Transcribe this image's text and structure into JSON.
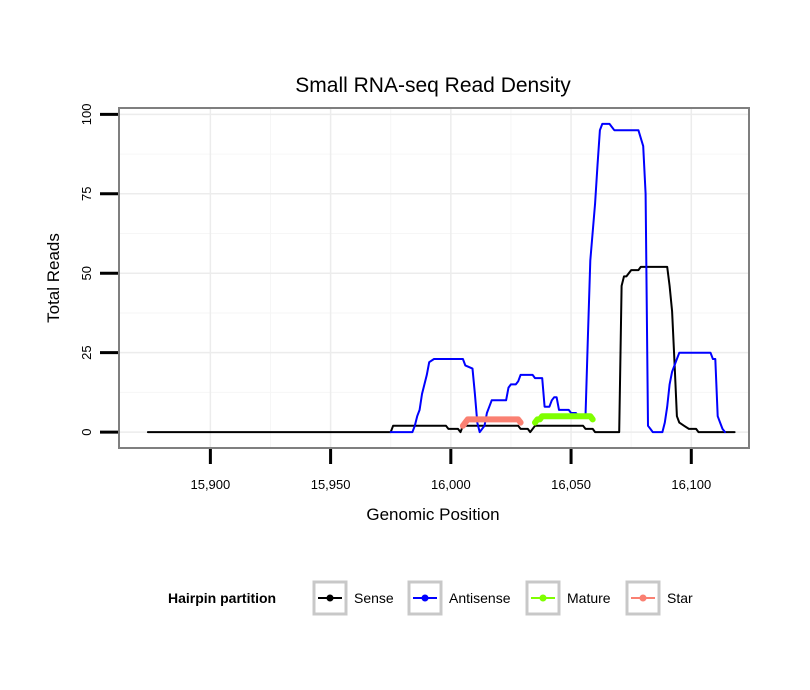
{
  "chart_data": {
    "type": "line",
    "title": "Small RNA-seq Read Density",
    "xlabel": "Genomic Position",
    "ylabel": "Total Reads",
    "xlim": [
      15862,
      16124
    ],
    "ylim": [
      -5,
      102
    ],
    "x_ticks": [
      15900,
      15950,
      16000,
      16050,
      16100
    ],
    "x_tick_labels": [
      "15,900",
      "15,950",
      "16,000",
      "16,050",
      "16,100"
    ],
    "y_ticks": [
      0,
      25,
      50,
      75,
      100
    ],
    "y_tick_labels": [
      "0",
      "25",
      "50",
      "75",
      "100"
    ],
    "grid": true,
    "legend": {
      "title": "Hairpin partition",
      "position": "bottom",
      "entries": [
        "Sense",
        "Antisense",
        "Mature",
        "Star"
      ]
    },
    "series": [
      {
        "name": "Sense",
        "color": "#000000",
        "points": [
          [
            15874,
            0
          ],
          [
            15975,
            0
          ],
          [
            15976,
            2
          ],
          [
            15985,
            2
          ],
          [
            15992,
            2
          ],
          [
            15998,
            2
          ],
          [
            15999,
            1
          ],
          [
            16003,
            1
          ],
          [
            16004,
            0
          ],
          [
            16005,
            2
          ],
          [
            16028,
            2
          ],
          [
            16029,
            1
          ],
          [
            16032,
            1
          ],
          [
            16033,
            0
          ],
          [
            16035,
            2
          ],
          [
            16055,
            2
          ],
          [
            16056,
            1
          ],
          [
            16059,
            1
          ],
          [
            16060,
            0
          ],
          [
            16070,
            0
          ],
          [
            16071,
            46
          ],
          [
            16072,
            49
          ],
          [
            16073,
            49
          ],
          [
            16075,
            51
          ],
          [
            16078,
            51
          ],
          [
            16079,
            52
          ],
          [
            16090,
            52
          ],
          [
            16091,
            46
          ],
          [
            16092,
            38
          ],
          [
            16093,
            22
          ],
          [
            16094,
            5
          ],
          [
            16095,
            3
          ],
          [
            16097,
            2
          ],
          [
            16099,
            1
          ],
          [
            16102,
            1
          ],
          [
            16103,
            0
          ],
          [
            16118,
            0
          ]
        ]
      },
      {
        "name": "Antisense",
        "color": "#0000ff",
        "points": [
          [
            15975,
            0
          ],
          [
            15984,
            0
          ],
          [
            15985,
            2
          ],
          [
            15986,
            5
          ],
          [
            15987,
            7
          ],
          [
            15988,
            12
          ],
          [
            15990,
            18
          ],
          [
            15991,
            22
          ],
          [
            15993,
            23
          ],
          [
            16005,
            23
          ],
          [
            16006,
            21
          ],
          [
            16009,
            20
          ],
          [
            16010,
            12
          ],
          [
            16011,
            3
          ],
          [
            16012,
            0
          ],
          [
            16014,
            2
          ],
          [
            16015,
            6
          ],
          [
            16016,
            8
          ],
          [
            16017,
            10
          ],
          [
            16023,
            10
          ],
          [
            16024,
            14
          ],
          [
            16025,
            15
          ],
          [
            16027,
            15
          ],
          [
            16028,
            16
          ],
          [
            16029,
            18
          ],
          [
            16034,
            18
          ],
          [
            16035,
            17
          ],
          [
            16038,
            17
          ],
          [
            16039,
            8
          ],
          [
            16041,
            8
          ],
          [
            16042,
            10
          ],
          [
            16043,
            11
          ],
          [
            16044,
            11
          ],
          [
            16045,
            7
          ],
          [
            16049,
            7
          ],
          [
            16050,
            6
          ],
          [
            16052,
            6
          ],
          [
            16053,
            5
          ],
          [
            16056,
            5
          ],
          [
            16057,
            30
          ],
          [
            16058,
            54
          ],
          [
            16060,
            72
          ],
          [
            16061,
            84
          ],
          [
            16062,
            95
          ],
          [
            16063,
            97
          ],
          [
            16066,
            97
          ],
          [
            16068,
            95
          ],
          [
            16078,
            95
          ],
          [
            16080,
            90
          ],
          [
            16081,
            75
          ],
          [
            16082,
            2
          ],
          [
            16083,
            1
          ],
          [
            16084,
            0
          ],
          [
            16088,
            0
          ],
          [
            16089,
            3
          ],
          [
            16090,
            8
          ],
          [
            16091,
            15
          ],
          [
            16092,
            19
          ],
          [
            16094,
            23
          ],
          [
            16095,
            25
          ],
          [
            16108,
            25
          ],
          [
            16109,
            23
          ],
          [
            16110,
            23
          ],
          [
            16111,
            5
          ],
          [
            16112,
            3
          ],
          [
            16113,
            1
          ],
          [
            16114,
            0
          ]
        ]
      },
      {
        "name": "Mature",
        "color": "#7fff00",
        "points": [
          [
            16035,
            3
          ],
          [
            16036,
            4
          ],
          [
            16037,
            4
          ],
          [
            16038,
            5
          ],
          [
            16058,
            5
          ],
          [
            16059,
            4
          ]
        ]
      },
      {
        "name": "Star",
        "color": "#fa8072",
        "points": [
          [
            16005,
            2
          ],
          [
            16006,
            3
          ],
          [
            16007,
            4
          ],
          [
            16028,
            4
          ],
          [
            16029,
            3
          ]
        ]
      }
    ]
  }
}
